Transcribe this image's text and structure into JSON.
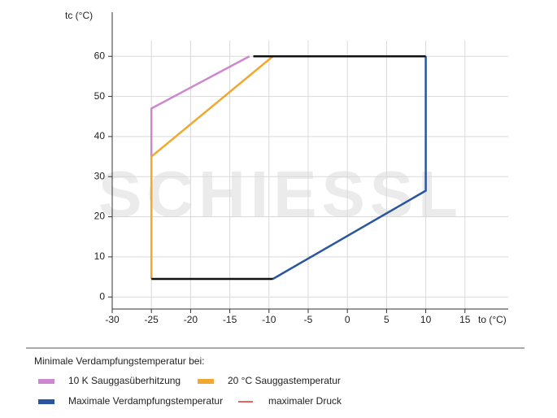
{
  "chart_data": {
    "type": "line",
    "watermark": "SCHIESSL",
    "x_label": "to (°C)",
    "y_label": "tc (°C)",
    "xlim": [
      -30,
      20
    ],
    "xticks": [
      -30,
      -25,
      -20,
      -15,
      -10,
      -5,
      0,
      5,
      10,
      15
    ],
    "ylim": [
      -3,
      71
    ],
    "yticks": [
      0,
      10,
      20,
      30,
      40,
      50,
      60
    ],
    "grid": true,
    "legend_title": "Minimale Verdampfungstemperatur bei:",
    "series": [
      {
        "name": "10 K Sauggasüberhitzung",
        "color": "#cc88cc",
        "legend_marker": "box",
        "x": [
          -25,
          -25,
          -12.5
        ],
        "values": [
          35,
          47,
          60
        ]
      },
      {
        "name": "20 °C Sauggastemperatur",
        "color": "#f0a830",
        "legend_marker": "box",
        "x": [
          -25,
          -25,
          -9.5
        ],
        "values": [
          4.5,
          35,
          60
        ]
      },
      {
        "name": "Maximale Verdampfungstemperatur",
        "color": "#2a55a0",
        "legend_marker": "box",
        "x": [
          -9.5,
          10,
          10
        ],
        "values": [
          4.5,
          26.5,
          60
        ]
      },
      {
        "name": "maximaler Druck",
        "color": "#e03030",
        "legend_marker": "line",
        "x": [],
        "values": []
      },
      {
        "color": "#111111",
        "x": [
          -25,
          -9.5,
          null,
          -12,
          10
        ],
        "values": [
          4.5,
          4.5,
          null,
          60,
          60
        ]
      }
    ]
  }
}
